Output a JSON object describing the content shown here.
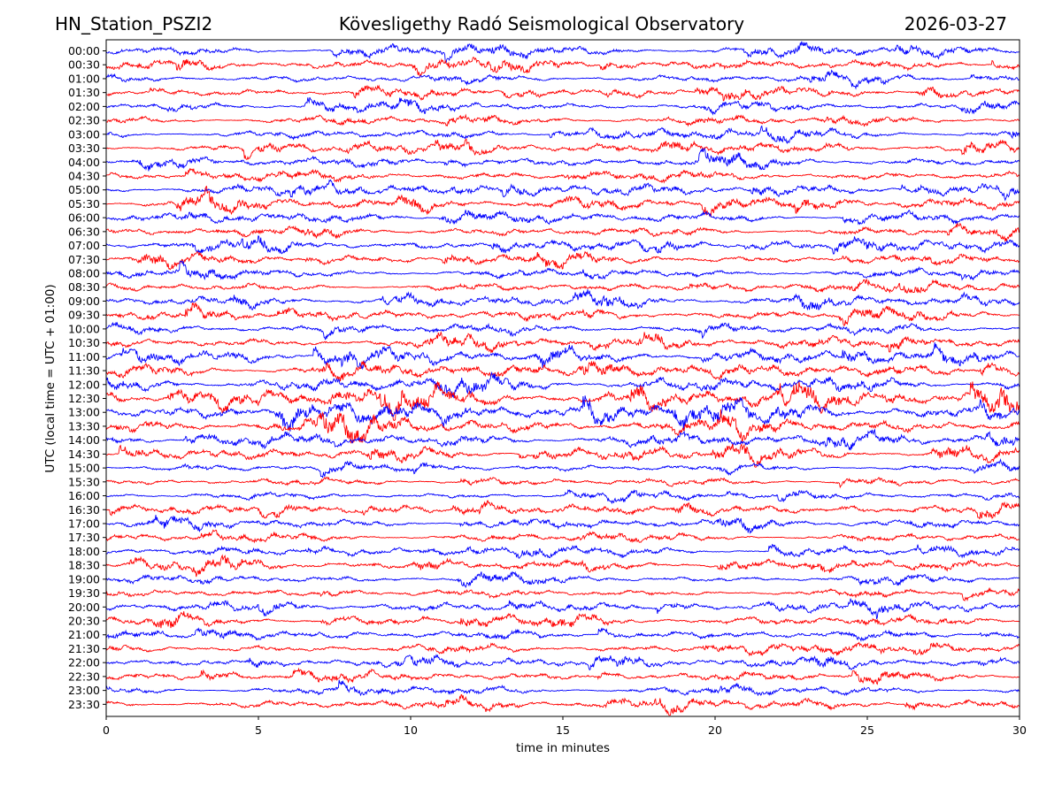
{
  "header": {
    "station": "HN_Station_PSZI2",
    "observatory": "Kövesligethy Radó Seismological Observatory",
    "date": "2026-03-27"
  },
  "chart_data": {
    "type": "line",
    "title": "Kövesligethy Radó Seismological Observatory",
    "xlabel": "time in minutes",
    "ylabel": "UTC (local time = UTC + 01:00)",
    "xlim": [
      0,
      30
    ],
    "xticks": [
      "0",
      "5",
      "10",
      "15",
      "20",
      "25",
      "30"
    ],
    "rows": [
      "00:00",
      "00:30",
      "01:00",
      "01:30",
      "02:00",
      "02:30",
      "03:00",
      "03:30",
      "04:00",
      "04:30",
      "05:00",
      "05:30",
      "06:00",
      "06:30",
      "07:00",
      "07:30",
      "08:00",
      "08:30",
      "09:00",
      "09:30",
      "10:00",
      "10:30",
      "11:00",
      "11:30",
      "12:00",
      "12:30",
      "13:00",
      "13:30",
      "14:00",
      "14:30",
      "15:00",
      "15:30",
      "16:00",
      "16:30",
      "17:00",
      "17:30",
      "18:00",
      "18:30",
      "19:00",
      "19:30",
      "20:00",
      "20:30",
      "21:00",
      "21:30",
      "22:00",
      "22:30",
      "23:00",
      "23:30"
    ],
    "series_colors": [
      "#0000ff",
      "#ff0000"
    ],
    "activity": [
      0.8,
      0.8,
      0.75,
      0.7,
      0.7,
      0.75,
      0.75,
      0.75,
      0.8,
      0.85,
      0.85,
      0.9,
      0.85,
      0.8,
      0.8,
      0.75,
      0.7,
      0.7,
      0.75,
      0.8,
      0.85,
      0.9,
      1.0,
      1.2,
      1.4,
      1.5,
      1.5,
      1.4,
      1.2,
      0.9,
      0.55,
      0.6,
      0.6,
      0.7,
      0.75,
      0.7,
      0.7,
      0.7,
      0.65,
      0.65,
      0.7,
      0.75,
      0.75,
      0.75,
      0.7,
      0.7,
      0.75,
      0.8
    ],
    "grid": false
  }
}
